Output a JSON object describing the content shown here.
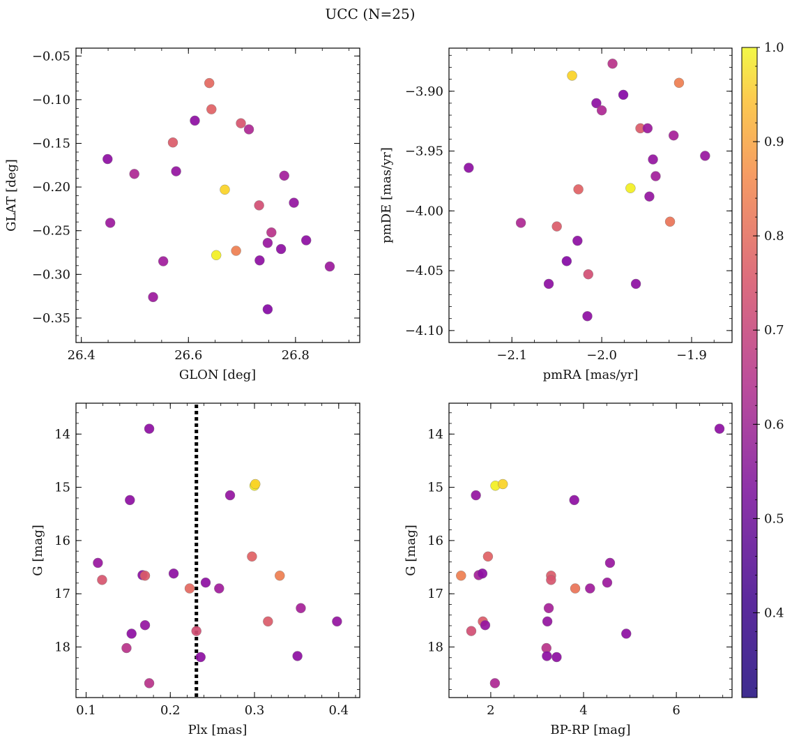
{
  "figure": {
    "title": "UCC (N=25)"
  },
  "colorbar": {
    "min": 0.31,
    "max": 1.0,
    "colormap": "plasma",
    "ticks": [
      0.4,
      0.5,
      0.6,
      0.7,
      0.8,
      0.9,
      1.0
    ],
    "tick_labels": [
      "0.4",
      "0.5",
      "0.6",
      "0.7",
      "0.8",
      "0.9",
      "1.0"
    ]
  },
  "chart_data": [
    {
      "type": "scatter",
      "title": "",
      "xlabel": "GLON [deg]",
      "ylabel": "GLAT [deg]",
      "xlim": [
        26.39,
        26.92
      ],
      "ylim": [
        -0.378,
        -0.041
      ],
      "xticks": [
        26.4,
        26.6,
        26.8
      ],
      "xtick_labels": [
        "26.4",
        "26.6",
        "26.8"
      ],
      "xminor": 0.05,
      "yticks": [
        -0.35,
        -0.3,
        -0.25,
        -0.2,
        -0.15,
        -0.1,
        -0.05
      ],
      "ytick_labels": [
        "−0.35",
        "−0.30",
        "−0.25",
        "−0.20",
        "−0.15",
        "−0.10",
        "−0.05"
      ],
      "yminor": 0.01,
      "points": [
        {
          "x": 26.449,
          "y": -0.168,
          "c": 0.38
        },
        {
          "x": 26.454,
          "y": -0.241,
          "c": 0.42
        },
        {
          "x": 26.499,
          "y": -0.185,
          "c": 0.47
        },
        {
          "x": 26.534,
          "y": -0.326,
          "c": 0.42
        },
        {
          "x": 26.553,
          "y": -0.285,
          "c": 0.43
        },
        {
          "x": 26.571,
          "y": -0.149,
          "c": 0.62
        },
        {
          "x": 26.577,
          "y": -0.182,
          "c": 0.4
        },
        {
          "x": 26.612,
          "y": -0.124,
          "c": 0.38
        },
        {
          "x": 26.639,
          "y": -0.081,
          "c": 0.66
        },
        {
          "x": 26.643,
          "y": -0.111,
          "c": 0.64
        },
        {
          "x": 26.652,
          "y": -0.278,
          "c": 0.98
        },
        {
          "x": 26.668,
          "y": -0.203,
          "c": 0.92
        },
        {
          "x": 26.689,
          "y": -0.273,
          "c": 0.72
        },
        {
          "x": 26.698,
          "y": -0.127,
          "c": 0.6
        },
        {
          "x": 26.713,
          "y": -0.134,
          "c": 0.47
        },
        {
          "x": 26.732,
          "y": -0.221,
          "c": 0.58
        },
        {
          "x": 26.733,
          "y": -0.284,
          "c": 0.38
        },
        {
          "x": 26.748,
          "y": -0.264,
          "c": 0.41
        },
        {
          "x": 26.748,
          "y": -0.34,
          "c": 0.36
        },
        {
          "x": 26.755,
          "y": -0.252,
          "c": 0.5
        },
        {
          "x": 26.773,
          "y": -0.271,
          "c": 0.38
        },
        {
          "x": 26.779,
          "y": -0.187,
          "c": 0.44
        },
        {
          "x": 26.797,
          "y": -0.218,
          "c": 0.4
        },
        {
          "x": 26.82,
          "y": -0.261,
          "c": 0.38
        },
        {
          "x": 26.864,
          "y": -0.291,
          "c": 0.42
        }
      ]
    },
    {
      "type": "scatter",
      "title": "",
      "xlabel": "pmRA [mas/yr]",
      "ylabel": "pmDE [mas/yr]",
      "xlim": [
        -2.17,
        -1.855
      ],
      "ylim": [
        -4.11,
        -3.864
      ],
      "xticks": [
        -2.1,
        -2.0,
        -1.9
      ],
      "xtick_labels": [
        "−2.1",
        "−2.0",
        "−1.9"
      ],
      "xminor": 0.025,
      "yticks": [
        -4.1,
        -4.05,
        -4.0,
        -3.95,
        -3.9
      ],
      "ytick_labels": [
        "−4.10",
        "−4.05",
        "−4.00",
        "−3.95",
        "−3.90"
      ],
      "yminor": 0.01,
      "points": [
        {
          "x": -2.148,
          "y": -3.964,
          "c": 0.38
        },
        {
          "x": -2.09,
          "y": -4.01,
          "c": 0.47
        },
        {
          "x": -2.059,
          "y": -4.061,
          "c": 0.38
        },
        {
          "x": -2.05,
          "y": -4.013,
          "c": 0.62
        },
        {
          "x": -2.039,
          "y": -4.042,
          "c": 0.36
        },
        {
          "x": -2.033,
          "y": -3.887,
          "c": 0.92
        },
        {
          "x": -2.027,
          "y": -4.025,
          "c": 0.38
        },
        {
          "x": -2.026,
          "y": -3.982,
          "c": 0.64
        },
        {
          "x": -2.016,
          "y": -4.088,
          "c": 0.38
        },
        {
          "x": -2.015,
          "y": -4.053,
          "c": 0.58
        },
        {
          "x": -2.006,
          "y": -3.91,
          "c": 0.38
        },
        {
          "x": -2.0,
          "y": -3.916,
          "c": 0.47
        },
        {
          "x": -1.988,
          "y": -3.877,
          "c": 0.5
        },
        {
          "x": -1.976,
          "y": -3.903,
          "c": 0.36
        },
        {
          "x": -1.968,
          "y": -3.981,
          "c": 0.98
        },
        {
          "x": -1.962,
          "y": -4.061,
          "c": 0.38
        },
        {
          "x": -1.957,
          "y": -3.931,
          "c": 0.62
        },
        {
          "x": -1.949,
          "y": -3.931,
          "c": 0.42
        },
        {
          "x": -1.947,
          "y": -3.988,
          "c": 0.4
        },
        {
          "x": -1.943,
          "y": -3.957,
          "c": 0.4
        },
        {
          "x": -1.94,
          "y": -3.971,
          "c": 0.44
        },
        {
          "x": -1.924,
          "y": -4.009,
          "c": 0.69
        },
        {
          "x": -1.92,
          "y": -3.937,
          "c": 0.45
        },
        {
          "x": -1.914,
          "y": -3.893,
          "c": 0.72
        },
        {
          "x": -1.885,
          "y": -3.954,
          "c": 0.41
        }
      ]
    },
    {
      "type": "scatter",
      "title": "",
      "xlabel": "Plx [mas]",
      "ylabel": "G [mag]",
      "xlim": [
        0.088,
        0.425
      ],
      "ylim": [
        18.95,
        13.42
      ],
      "y_inverted": true,
      "xticks": [
        0.1,
        0.2,
        0.3,
        0.4
      ],
      "xtick_labels": [
        "0.1",
        "0.2",
        "0.3",
        "0.4"
      ],
      "xminor": 0.02,
      "yticks": [
        14,
        15,
        16,
        17,
        18
      ],
      "ytick_labels": [
        "14",
        "15",
        "16",
        "17",
        "18"
      ],
      "yminor": 0.2,
      "vline": 0.231,
      "points": [
        {
          "x": 0.114,
          "y": 16.42,
          "c": 0.41
        },
        {
          "x": 0.119,
          "y": 16.74,
          "c": 0.6
        },
        {
          "x": 0.148,
          "y": 18.02,
          "c": 0.5
        },
        {
          "x": 0.152,
          "y": 15.24,
          "c": 0.38
        },
        {
          "x": 0.154,
          "y": 17.75,
          "c": 0.38
        },
        {
          "x": 0.167,
          "y": 16.65,
          "c": 0.38
        },
        {
          "x": 0.17,
          "y": 17.59,
          "c": 0.4
        },
        {
          "x": 0.17,
          "y": 16.66,
          "c": 0.62
        },
        {
          "x": 0.175,
          "y": 13.9,
          "c": 0.38
        },
        {
          "x": 0.175,
          "y": 18.68,
          "c": 0.5
        },
        {
          "x": 0.204,
          "y": 16.62,
          "c": 0.38
        },
        {
          "x": 0.223,
          "y": 16.9,
          "c": 0.66
        },
        {
          "x": 0.231,
          "y": 17.7,
          "c": 0.58
        },
        {
          "x": 0.236,
          "y": 18.19,
          "c": 0.38
        },
        {
          "x": 0.242,
          "y": 16.79,
          "c": 0.38
        },
        {
          "x": 0.258,
          "y": 16.9,
          "c": 0.43
        },
        {
          "x": 0.271,
          "y": 15.15,
          "c": 0.4
        },
        {
          "x": 0.297,
          "y": 16.3,
          "c": 0.64
        },
        {
          "x": 0.3,
          "y": 14.97,
          "c": 0.98
        },
        {
          "x": 0.301,
          "y": 14.94,
          "c": 0.92
        },
        {
          "x": 0.316,
          "y": 17.52,
          "c": 0.62
        },
        {
          "x": 0.33,
          "y": 16.66,
          "c": 0.72
        },
        {
          "x": 0.351,
          "y": 18.17,
          "c": 0.38
        },
        {
          "x": 0.355,
          "y": 17.27,
          "c": 0.45
        },
        {
          "x": 0.398,
          "y": 17.52,
          "c": 0.4
        }
      ]
    },
    {
      "type": "scatter",
      "title": "",
      "xlabel": "BP-RP [mag]",
      "ylabel": "G [mag]",
      "xlim": [
        1.1,
        7.2
      ],
      "ylim": [
        18.95,
        13.42
      ],
      "y_inverted": true,
      "xticks": [
        2,
        4,
        6
      ],
      "xtick_labels": [
        "2",
        "4",
        "6"
      ],
      "xminor": 0.5,
      "yticks": [
        14,
        15,
        16,
        17,
        18
      ],
      "ytick_labels": [
        "14",
        "15",
        "16",
        "17",
        "18"
      ],
      "yminor": 0.2,
      "points": [
        {
          "x": 1.36,
          "y": 16.66,
          "c": 0.72
        },
        {
          "x": 1.58,
          "y": 17.7,
          "c": 0.58
        },
        {
          "x": 1.68,
          "y": 15.15,
          "c": 0.4
        },
        {
          "x": 1.74,
          "y": 16.65,
          "c": 0.45
        },
        {
          "x": 1.82,
          "y": 16.62,
          "c": 0.38
        },
        {
          "x": 1.83,
          "y": 17.52,
          "c": 0.62
        },
        {
          "x": 1.88,
          "y": 17.59,
          "c": 0.4
        },
        {
          "x": 1.94,
          "y": 16.3,
          "c": 0.64
        },
        {
          "x": 2.09,
          "y": 18.68,
          "c": 0.47
        },
        {
          "x": 2.1,
          "y": 14.97,
          "c": 0.98
        },
        {
          "x": 2.26,
          "y": 14.94,
          "c": 0.92
        },
        {
          "x": 3.2,
          "y": 18.02,
          "c": 0.5
        },
        {
          "x": 3.21,
          "y": 18.17,
          "c": 0.38
        },
        {
          "x": 3.22,
          "y": 17.52,
          "c": 0.4
        },
        {
          "x": 3.25,
          "y": 17.27,
          "c": 0.45
        },
        {
          "x": 3.3,
          "y": 16.66,
          "c": 0.62
        },
        {
          "x": 3.3,
          "y": 16.74,
          "c": 0.6
        },
        {
          "x": 3.42,
          "y": 18.19,
          "c": 0.38
        },
        {
          "x": 3.8,
          "y": 15.24,
          "c": 0.38
        },
        {
          "x": 3.82,
          "y": 16.9,
          "c": 0.69
        },
        {
          "x": 4.14,
          "y": 16.9,
          "c": 0.43
        },
        {
          "x": 4.51,
          "y": 16.79,
          "c": 0.42
        },
        {
          "x": 4.57,
          "y": 16.42,
          "c": 0.41
        },
        {
          "x": 4.92,
          "y": 17.75,
          "c": 0.38
        },
        {
          "x": 6.93,
          "y": 13.9,
          "c": 0.38
        }
      ]
    }
  ]
}
